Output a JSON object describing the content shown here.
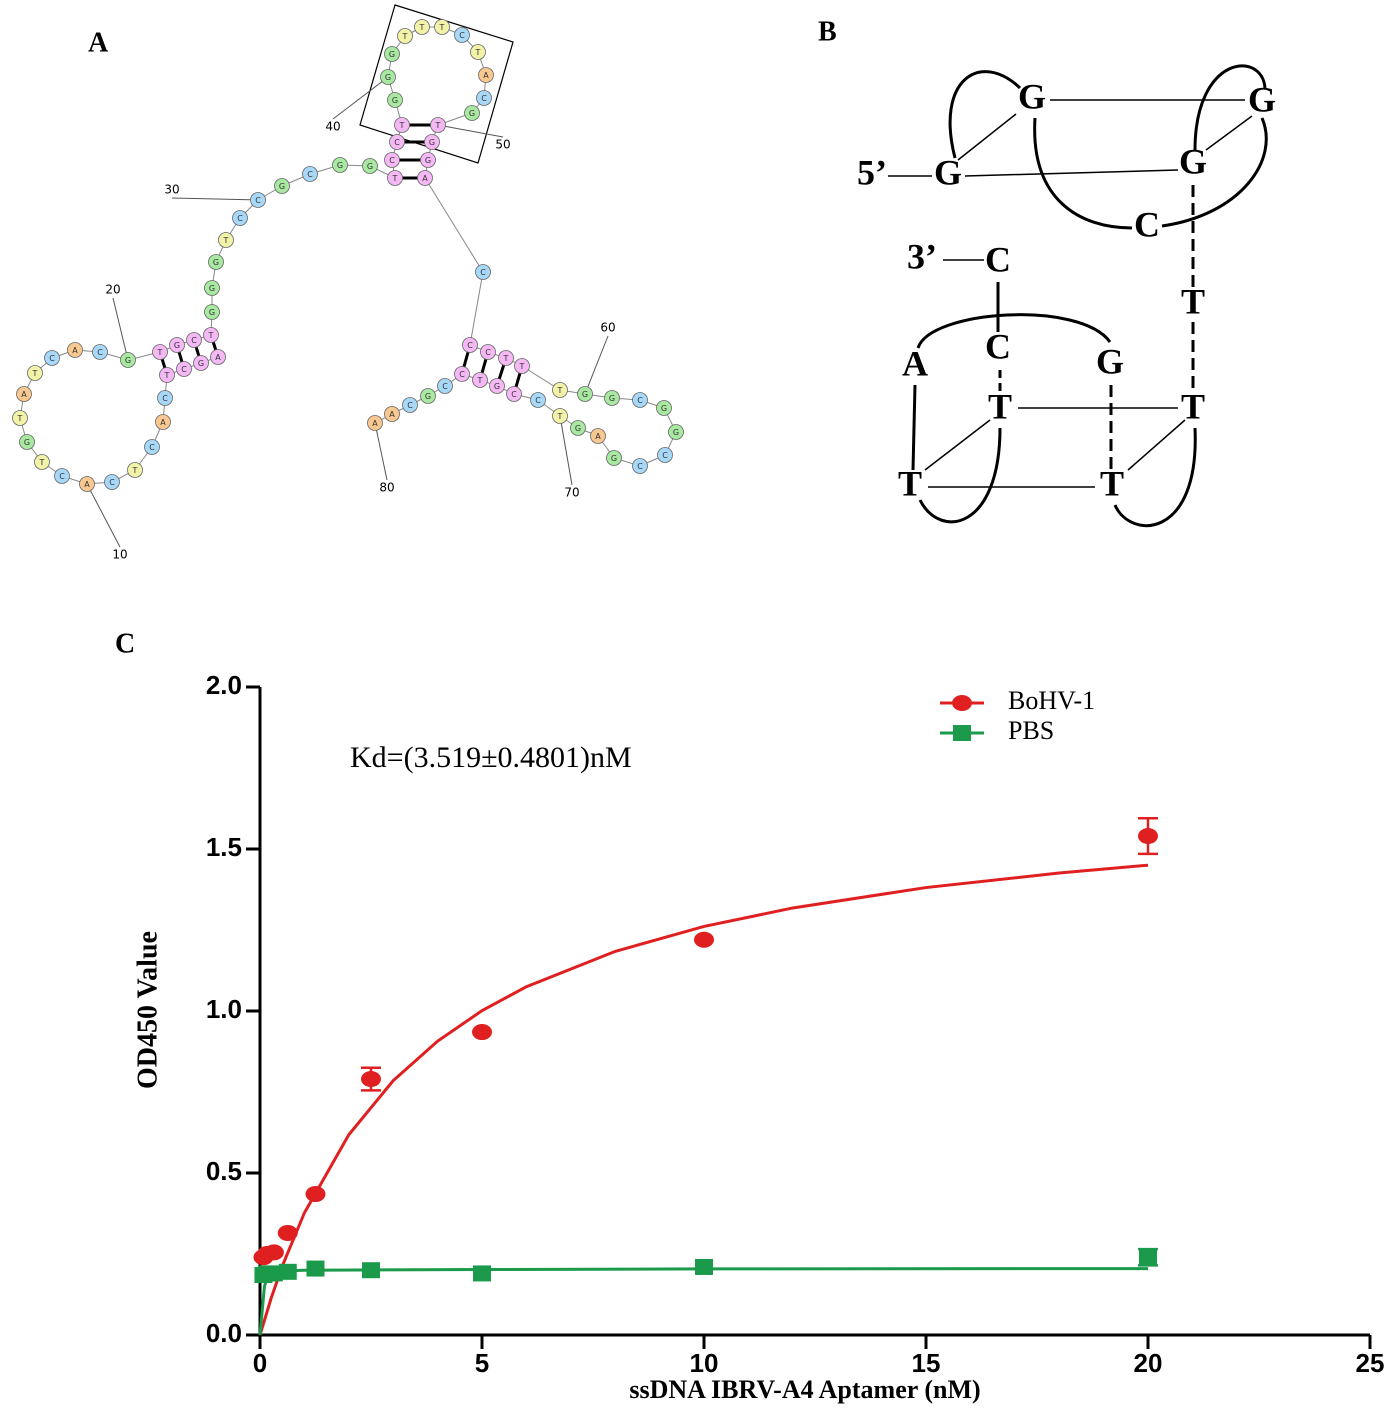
{
  "panel_a": {
    "label": "A",
    "letters": [
      "A",
      "G",
      "C",
      "T",
      "C",
      "A",
      "C",
      "T",
      "C",
      "A",
      "C",
      "T",
      "G",
      "T",
      "A",
      "T",
      "C",
      "A",
      "C",
      "G",
      "T",
      "G",
      "C",
      "T",
      "G",
      "G",
      "G",
      "T",
      "C",
      "C",
      "G",
      "C",
      "G",
      "G",
      "T",
      "C",
      "C",
      "T",
      "G",
      "G",
      "G",
      "T",
      "T",
      "T",
      "C",
      "T",
      "A",
      "C",
      "G",
      "T",
      "G",
      "G",
      "A",
      "C",
      "C",
      "C",
      "T",
      "T",
      "T",
      "G",
      "G",
      "C",
      "G",
      "G",
      "C",
      "C",
      "G",
      "A",
      "G",
      "T",
      "C",
      "C",
      "G",
      "T",
      "C",
      "C",
      "G",
      "C",
      "A",
      "A"
    ],
    "numbers": [
      10,
      20,
      30,
      40,
      50,
      60,
      70,
      80
    ]
  },
  "panel_b": {
    "label": "B",
    "five_prime": "5’",
    "three_prime": "3’",
    "bases": [
      "G",
      "G",
      "G",
      "G",
      "C",
      "C",
      "T",
      "C",
      "A",
      "G",
      "T",
      "T",
      "T",
      "T"
    ]
  },
  "panel_label_c": "C",
  "chart_data": {
    "type": "scatter",
    "annotation": "Kd=(3.519±0.4801)nM",
    "x_label": "ssDNA IBRV-A4 Aptamer (nM)",
    "y_label": "OD450 Value",
    "xlim": [
      0,
      25
    ],
    "xticks": [
      0,
      5,
      10,
      15,
      20,
      25
    ],
    "ylim": [
      0,
      2
    ],
    "yticks": [
      {
        "value": 0,
        "label": "0.0"
      },
      {
        "value": 0.5,
        "label": "0.5"
      },
      {
        "value": 1,
        "label": "1.0"
      },
      {
        "value": 1.5,
        "label": "1.5"
      },
      {
        "value": 2,
        "label": "2.0"
      }
    ],
    "legend": "upper right",
    "series": [
      {
        "name": "BoHV-1",
        "color": "#e02020",
        "marker": "circle",
        "x": [
          0.078,
          0.156,
          0.3125,
          0.625,
          1.25,
          2.5,
          5,
          10,
          20
        ],
        "values": [
          0.24,
          0.25,
          0.255,
          0.315,
          0.435,
          0.79,
          0.935,
          1.22,
          1.54
        ],
        "errors": [
          null,
          null,
          null,
          null,
          null,
          0.035,
          null,
          null,
          0.055
        ],
        "fit": {
          "x": [
            0,
            0.25,
            0.5,
            1,
            2,
            3,
            4,
            5,
            6,
            8,
            10,
            12,
            15,
            18,
            20
          ],
          "values": [
            0,
            0.113,
            0.212,
            0.377,
            0.618,
            0.785,
            0.907,
            1.001,
            1.075,
            1.184,
            1.261,
            1.318,
            1.381,
            1.426,
            1.45
          ]
        }
      },
      {
        "name": "PBS",
        "color": "#1a9a4a",
        "marker": "square",
        "x": [
          0.078,
          0.156,
          0.3125,
          0.625,
          1.25,
          2.5,
          5,
          10,
          20
        ],
        "values": [
          0.185,
          0.19,
          0.19,
          0.195,
          0.205,
          0.2,
          0.19,
          0.21,
          0.24
        ],
        "errors": [
          null,
          null,
          null,
          null,
          null,
          null,
          null,
          null,
          0.025
        ],
        "fit": {
          "x": [
            0,
            0.1,
            0.2,
            0.5,
            1,
            5,
            10,
            20
          ],
          "values": [
            0,
            0.15,
            0.19,
            0.198,
            0.2,
            0.202,
            0.204,
            0.205
          ]
        }
      }
    ]
  }
}
